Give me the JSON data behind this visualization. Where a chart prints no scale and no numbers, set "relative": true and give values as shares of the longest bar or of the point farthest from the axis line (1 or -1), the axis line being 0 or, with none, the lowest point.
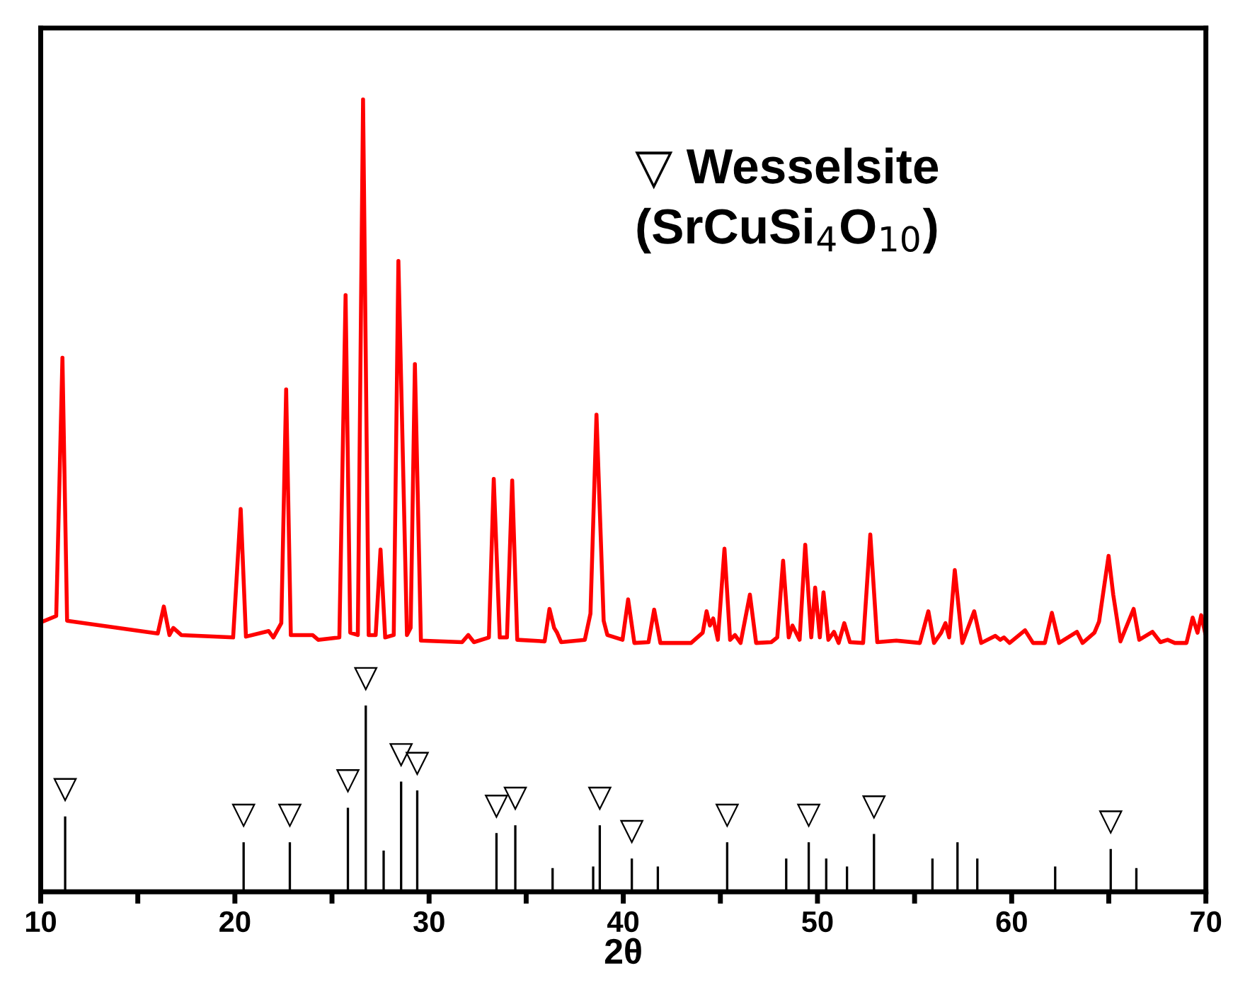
{
  "chart_data": {
    "type": "line",
    "xlabel": "2θ",
    "relative": true,
    "xlim": [
      10,
      70
    ],
    "xticks": [
      10,
      {
        "value": 15,
        "label": null
      },
      20,
      {
        "value": 25,
        "label": null
      },
      30,
      {
        "value": 35,
        "label": null
      },
      40,
      {
        "value": 45,
        "label": null
      },
      50,
      {
        "value": 55,
        "label": null
      },
      60,
      {
        "value": 65,
        "label": null
      },
      70
    ],
    "tick_labels": "x",
    "grid": false,
    "legend": false,
    "marker": "none",
    "line_style": "solid",
    "series": [
      {
        "color": "#ff0000",
        "x": [
          10.0,
          10.8,
          11.12,
          11.36,
          16.03,
          16.34,
          16.63,
          16.83,
          17.24,
          19.91,
          20.3,
          20.57,
          21.74,
          21.98,
          22.39,
          22.64,
          22.88,
          24.0,
          24.29,
          25.38,
          25.7,
          25.94,
          26.33,
          26.6,
          26.89,
          27.25,
          27.5,
          27.74,
          28.18,
          28.42,
          28.86,
          29.05,
          29.27,
          29.58,
          31.7,
          32.02,
          32.31,
          33.08,
          33.33,
          33.64,
          34.01,
          34.28,
          34.54,
          35.95,
          36.2,
          36.44,
          36.59,
          36.8,
          38.02,
          38.31,
          38.62,
          38.99,
          39.18,
          39.96,
          40.25,
          40.57,
          41.3,
          41.59,
          41.91,
          43.49,
          44.09,
          44.29,
          44.46,
          44.63,
          44.87,
          45.21,
          45.5,
          45.75,
          46.04,
          46.52,
          46.84,
          47.62,
          47.93,
          48.23,
          48.52,
          48.71,
          49.08,
          49.37,
          49.68,
          49.88,
          50.12,
          50.31,
          50.56,
          50.85,
          51.09,
          51.38,
          51.67,
          52.35,
          52.72,
          53.08,
          54.06,
          55.27,
          55.71,
          56.0,
          56.37,
          56.59,
          56.78,
          57.07,
          57.46,
          58.07,
          58.43,
          59.16,
          59.41,
          59.6,
          59.89,
          60.69,
          61.1,
          61.71,
          62.07,
          62.44,
          63.36,
          63.65,
          64.26,
          64.5,
          64.99,
          65.23,
          65.6,
          66.28,
          66.57,
          67.25,
          67.66,
          68.03,
          68.4,
          69.0,
          69.32,
          69.57,
          69.76,
          69.96
        ],
        "values": [
          0.34,
          0.348,
          0.674,
          0.342,
          0.326,
          0.36,
          0.324,
          0.333,
          0.324,
          0.321,
          0.483,
          0.322,
          0.329,
          0.321,
          0.339,
          0.634,
          0.324,
          0.324,
          0.318,
          0.321,
          0.753,
          0.327,
          0.324,
          1.0,
          0.324,
          0.324,
          0.432,
          0.321,
          0.324,
          0.796,
          0.324,
          0.333,
          0.666,
          0.317,
          0.315,
          0.324,
          0.315,
          0.321,
          0.521,
          0.321,
          0.321,
          0.519,
          0.318,
          0.316,
          0.357,
          0.333,
          0.327,
          0.315,
          0.318,
          0.351,
          0.602,
          0.342,
          0.324,
          0.318,
          0.369,
          0.314,
          0.315,
          0.356,
          0.314,
          0.314,
          0.327,
          0.354,
          0.336,
          0.345,
          0.318,
          0.433,
          0.318,
          0.324,
          0.314,
          0.375,
          0.314,
          0.315,
          0.321,
          0.418,
          0.321,
          0.336,
          0.318,
          0.438,
          0.321,
          0.384,
          0.321,
          0.378,
          0.318,
          0.328,
          0.314,
          0.339,
          0.315,
          0.314,
          0.451,
          0.315,
          0.317,
          0.314,
          0.354,
          0.314,
          0.327,
          0.339,
          0.321,
          0.406,
          0.314,
          0.354,
          0.314,
          0.323,
          0.318,
          0.321,
          0.314,
          0.33,
          0.314,
          0.314,
          0.352,
          0.314,
          0.328,
          0.314,
          0.327,
          0.341,
          0.424,
          0.375,
          0.316,
          0.357,
          0.318,
          0.328,
          0.315,
          0.318,
          0.314,
          0.314,
          0.346,
          0.327,
          0.349,
          0.327
        ]
      },
      {
        "type": "bar",
        "color": "#000000",
        "x": [
          11.26,
          20.45,
          22.83,
          25.82,
          26.74,
          27.66,
          28.56,
          29.39,
          33.47,
          34.44,
          36.36,
          38.45,
          38.79,
          40.44,
          41.78,
          45.35,
          48.39,
          49.55,
          50.45,
          51.52,
          52.91,
          55.92,
          57.21,
          58.23,
          62.24,
          65.1,
          66.42
        ],
        "values": [
          0.095,
          0.0625,
          0.0625,
          0.106,
          0.235,
          0.052,
          0.139,
          0.128,
          0.074,
          0.084,
          0.03,
          0.032,
          0.084,
          0.042,
          0.032,
          0.0625,
          0.042,
          0.0625,
          0.042,
          0.032,
          0.073,
          0.042,
          0.0625,
          0.042,
          0.032,
          0.054,
          0.03
        ]
      }
    ],
    "annotations": [
      "▽ Wesselsite\n(SrCuSi$_{4}$O$_{10}$)",
      {
        "text": "▽",
        "x": 11.26,
        "y": 0.095
      },
      {
        "text": "▽",
        "x": 20.45,
        "y": 0.0625
      },
      {
        "text": "▽",
        "x": 22.83,
        "y": 0.0625
      },
      {
        "text": "▽",
        "x": 25.82,
        "y": 0.106
      },
      {
        "text": "▽",
        "x": 26.74,
        "y": 0.235
      },
      {
        "text": "▽",
        "x": 28.56,
        "y": 0.139
      },
      {
        "text": "▽",
        "x": 29.39,
        "y": 0.128
      },
      {
        "text": "▽",
        "x": 33.47,
        "y": 0.074
      },
      {
        "text": "▽",
        "x": 34.44,
        "y": 0.084
      },
      {
        "text": "▽",
        "x": 38.79,
        "y": 0.084
      },
      {
        "text": "▽",
        "x": 40.44,
        "y": 0.042
      },
      {
        "text": "▽",
        "x": 45.35,
        "y": 0.0625
      },
      {
        "text": "▽",
        "x": 49.55,
        "y": 0.0625
      },
      {
        "text": "▽",
        "x": 52.91,
        "y": 0.073
      },
      {
        "text": "▽",
        "x": 65.1,
        "y": 0.054
      }
    ]
  }
}
